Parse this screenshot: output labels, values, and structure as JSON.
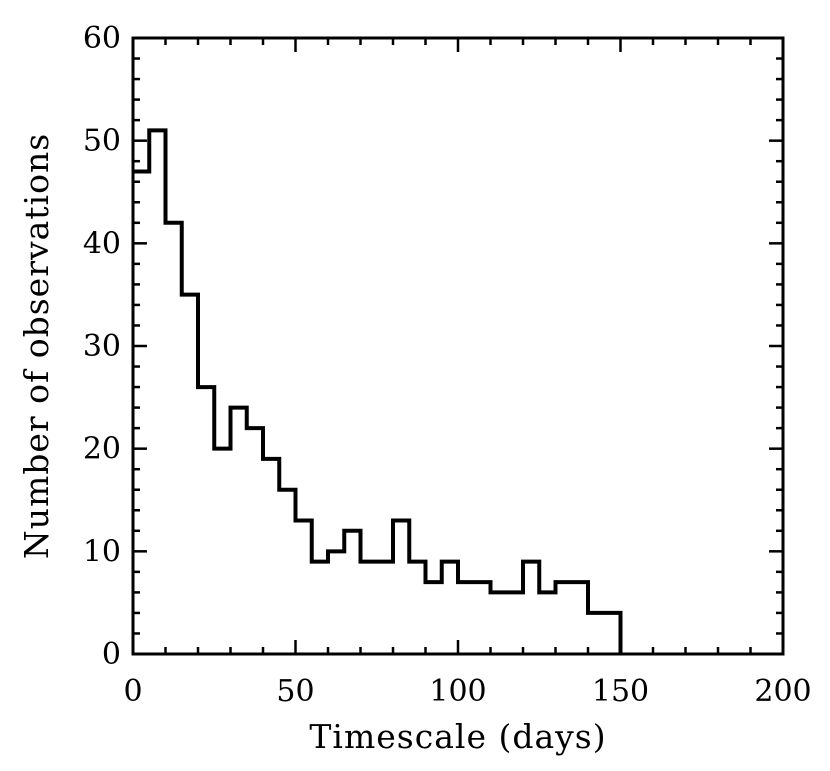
{
  "chart_data": {
    "type": "histogram",
    "xlabel": "Timescale (days)",
    "ylabel": "Number of observations",
    "xlim": [
      0,
      200
    ],
    "ylim": [
      0,
      60
    ],
    "xticks": [
      0,
      50,
      100,
      150,
      200
    ],
    "yticks": [
      0,
      10,
      20,
      30,
      40,
      50,
      60
    ],
    "bin_width": 5,
    "bins": [
      {
        "start": 0,
        "count": 47
      },
      {
        "start": 5,
        "count": 51
      },
      {
        "start": 10,
        "count": 42
      },
      {
        "start": 15,
        "count": 35
      },
      {
        "start": 20,
        "count": 26
      },
      {
        "start": 25,
        "count": 20
      },
      {
        "start": 30,
        "count": 24
      },
      {
        "start": 35,
        "count": 22
      },
      {
        "start": 40,
        "count": 19
      },
      {
        "start": 45,
        "count": 16
      },
      {
        "start": 50,
        "count": 13
      },
      {
        "start": 55,
        "count": 9
      },
      {
        "start": 60,
        "count": 10
      },
      {
        "start": 65,
        "count": 12
      },
      {
        "start": 70,
        "count": 9
      },
      {
        "start": 75,
        "count": 9
      },
      {
        "start": 80,
        "count": 13
      },
      {
        "start": 85,
        "count": 9
      },
      {
        "start": 90,
        "count": 7
      },
      {
        "start": 95,
        "count": 9
      },
      {
        "start": 100,
        "count": 7
      },
      {
        "start": 105,
        "count": 7
      },
      {
        "start": 110,
        "count": 6
      },
      {
        "start": 115,
        "count": 6
      },
      {
        "start": 120,
        "count": 9
      },
      {
        "start": 125,
        "count": 6
      },
      {
        "start": 130,
        "count": 7
      },
      {
        "start": 135,
        "count": 7
      },
      {
        "start": 140,
        "count": 4
      },
      {
        "start": 145,
        "count": 4
      }
    ],
    "grid": false,
    "color": "#000000"
  }
}
